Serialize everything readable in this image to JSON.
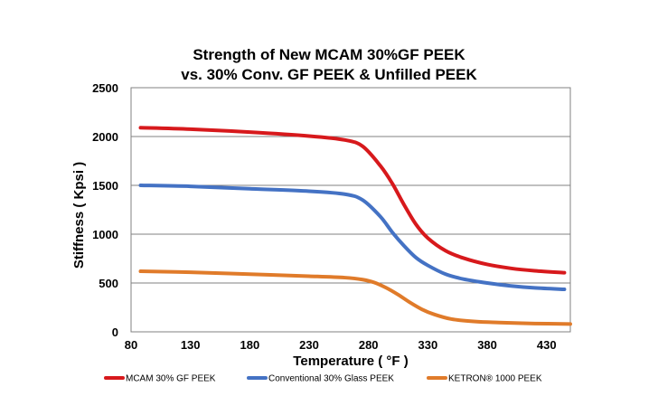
{
  "chart_data": {
    "type": "line",
    "title_line1": "Strength of New MCAM 30%GF PEEK",
    "title_line2": "vs. 30% Conv. GF PEEK & Unfilled PEEK",
    "xlabel": "Temperature ( °F )",
    "ylabel": "Stiffness ( Kpsi )",
    "xlim": [
      80,
      450
    ],
    "ylim": [
      0,
      2500
    ],
    "xticks": [
      "80",
      "130",
      "180",
      "230",
      "280",
      "330",
      "380",
      "430"
    ],
    "yticks": [
      "0",
      "500",
      "1000",
      "1500",
      "2000",
      "2500"
    ],
    "grid": "horizontal",
    "legend_position": "bottom",
    "series": [
      {
        "name": "MCAM 30% GF PEEK",
        "color": "#d7191c",
        "x": [
          88,
          130,
          180,
          230,
          260,
          275,
          290,
          300,
          310,
          320,
          330,
          345,
          360,
          380,
          400,
          420,
          445
        ],
        "y": [
          2090,
          2075,
          2045,
          2005,
          1965,
          1900,
          1700,
          1520,
          1300,
          1100,
          960,
          830,
          755,
          690,
          650,
          625,
          605
        ]
      },
      {
        "name": "Conventional 30% Glass PEEK",
        "color": "#4472c4",
        "x": [
          88,
          130,
          180,
          230,
          260,
          275,
          290,
          300,
          310,
          320,
          330,
          345,
          360,
          380,
          400,
          420,
          445
        ],
        "y": [
          1500,
          1490,
          1465,
          1440,
          1410,
          1350,
          1180,
          1020,
          880,
          760,
          680,
          590,
          540,
          500,
          470,
          450,
          435
        ]
      },
      {
        "name": "KETRON® 1000 PEEK",
        "color": "#e07b2a",
        "x": [
          88,
          130,
          180,
          230,
          260,
          275,
          285,
          295,
          305,
          315,
          325,
          335,
          350,
          370,
          390,
          420,
          450
        ],
        "y": [
          620,
          610,
          590,
          570,
          555,
          535,
          505,
          450,
          380,
          300,
          230,
          180,
          130,
          105,
          95,
          85,
          80
        ]
      }
    ]
  }
}
